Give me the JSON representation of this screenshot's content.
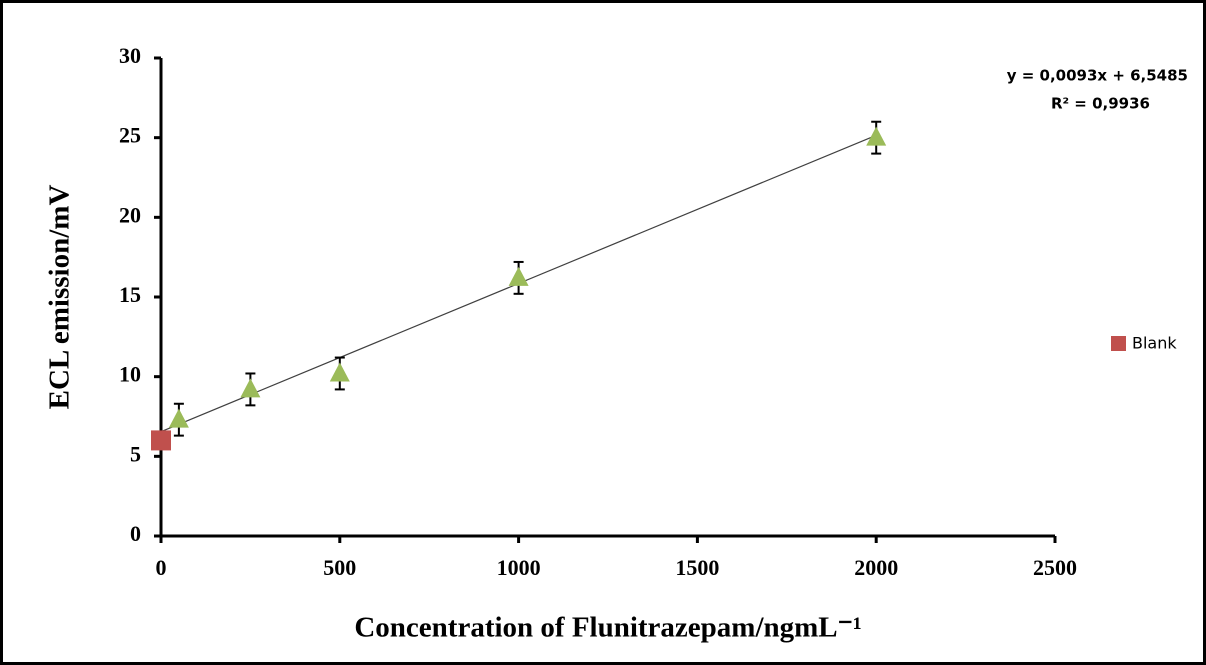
{
  "chart_data": {
    "type": "scatter",
    "x_label": "Concentration of Flunitrazepam/ngmL⁻¹",
    "y_label": "ECL emission/mV",
    "xlim": [
      0,
      2500
    ],
    "xticks": [
      0,
      500,
      1000,
      1500,
      2000,
      2500
    ],
    "ylim": [
      0,
      30
    ],
    "yticks": [
      0,
      5,
      10,
      15,
      20,
      25,
      30
    ],
    "grid": false,
    "legend_position": "right",
    "series": [
      {
        "marker": "triangle",
        "color": "#9bbb59",
        "x": [
          50,
          250,
          500,
          1000,
          2000
        ],
        "values": [
          7.3,
          9.2,
          10.2,
          16.2,
          25.0
        ],
        "errors": [
          1,
          1,
          1,
          1,
          1
        ],
        "trendline": {
          "slope": 0.0093,
          "intercept": 6.5485,
          "equation": "y = 0,0093x + 6,5485",
          "r_squared": "R² = 0,9936",
          "color": "#404040"
        }
      },
      {
        "name": "Blank",
        "marker": "square",
        "color": "#c0504d",
        "x": [
          0
        ],
        "values": [
          6
        ]
      }
    ]
  }
}
